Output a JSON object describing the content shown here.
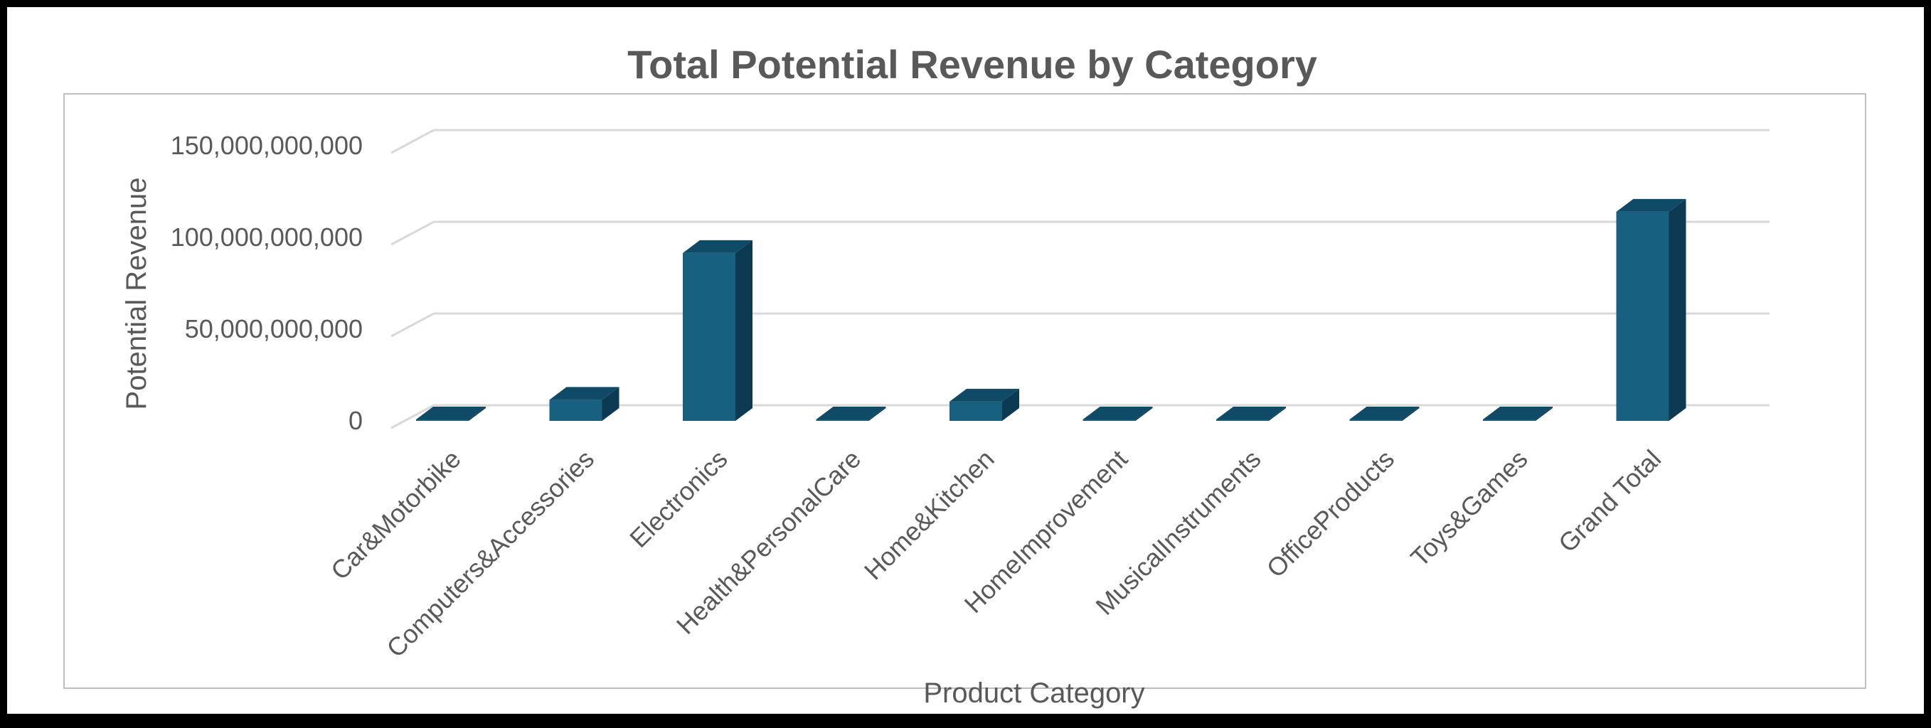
{
  "chart_data": {
    "type": "bar",
    "title": "Total Potential Revenue by Category",
    "xlabel": "Product Category",
    "ylabel": "Potential Revenue",
    "categories": [
      "Car&Motorbike",
      "Computers&Accessories",
      "Electronics",
      "Health&PersonalCare",
      "Home&Kitchen",
      "HomeImprovement",
      "MusicalInstruments",
      "OfficeProducts",
      "Toys&Games",
      "Grand Total"
    ],
    "values": [
      60000000,
      11500000000,
      91500000000,
      300000000,
      10500000000,
      200000000,
      500000000,
      100000000,
      50000000,
      114000000000
    ],
    "ylim": [
      0,
      150000000000
    ],
    "yticks": [
      0,
      50000000000,
      100000000000,
      150000000000
    ],
    "ytick_labels": [
      "0",
      "50,000,000,000",
      "100,000,000,000",
      "150,000,000,000"
    ],
    "grid": true,
    "legend": "none",
    "style": "3d-column",
    "colors": {
      "bar_front": "#17607f",
      "bar_top": "#0f4b66",
      "bar_side": "#0b3a52",
      "grid": "#d9d9d9",
      "plot_border": "#bfbfbf",
      "text": "#595959"
    }
  }
}
